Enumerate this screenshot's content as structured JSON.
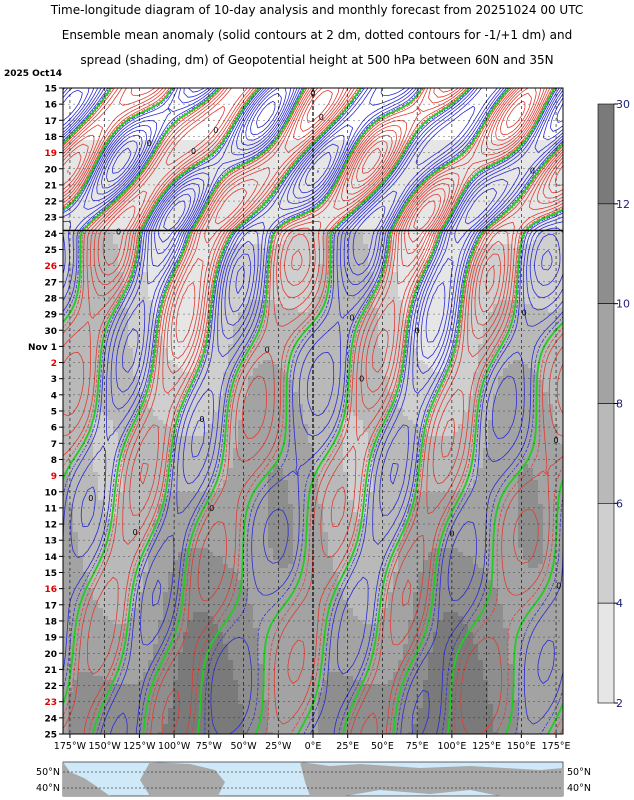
{
  "chart_data": {
    "type": "heatmap",
    "title_lines": [
      "Time-longitude diagram of 10-day analysis and monthly forecast from 20251024 00 UTC",
      "Ensemble mean anomaly (solid contours at 2 dm, dotted contours for -1/+1 dm) and",
      "spread (shading, dm) of Geopotential height at 500 hPa between 60N and 35N"
    ],
    "start_label": "2025 Oct14",
    "y_ticks": [
      {
        "label": "15"
      },
      {
        "label": "16"
      },
      {
        "label": "17"
      },
      {
        "label": "18"
      },
      {
        "label": "19",
        "weekend": true
      },
      {
        "label": "20"
      },
      {
        "label": "21"
      },
      {
        "label": "22"
      },
      {
        "label": "23"
      },
      {
        "label": "24"
      },
      {
        "label": "25"
      },
      {
        "label": "26",
        "weekend": true
      },
      {
        "label": "27"
      },
      {
        "label": "28"
      },
      {
        "label": "29"
      },
      {
        "label": "30"
      },
      {
        "label": "Nov  1"
      },
      {
        "label": "2",
        "weekend": true
      },
      {
        "label": "3"
      },
      {
        "label": "4"
      },
      {
        "label": "5"
      },
      {
        "label": "6"
      },
      {
        "label": "7"
      },
      {
        "label": "8"
      },
      {
        "label": "9",
        "weekend": true
      },
      {
        "label": "10"
      },
      {
        "label": "11"
      },
      {
        "label": "12"
      },
      {
        "label": "13"
      },
      {
        "label": "14"
      },
      {
        "label": "15"
      },
      {
        "label": "16",
        "weekend": true
      },
      {
        "label": "17"
      },
      {
        "label": "18"
      },
      {
        "label": "19"
      },
      {
        "label": "20"
      },
      {
        "label": "21"
      },
      {
        "label": "22"
      },
      {
        "label": "23",
        "weekend": true
      },
      {
        "label": "24"
      },
      {
        "label": "25"
      }
    ],
    "x_ticks": [
      "175°W",
      "150°W",
      "125°W",
      "100°W",
      "75°W",
      "50°W",
      "25°W",
      "0°E",
      "25°E",
      "50°E",
      "75°E",
      "100°E",
      "125°E",
      "150°E",
      "175°E"
    ],
    "x_range_deg": [
      -180,
      180
    ],
    "analysis_end_row": 9,
    "colorbar": {
      "labels": [
        "30",
        "12",
        "10",
        "8",
        "6",
        "4",
        "2"
      ],
      "levels": [
        2,
        4,
        6,
        8,
        10,
        12,
        30
      ],
      "colors": [
        "#e6e6e6",
        "#cfcfcf",
        "#b9b9b9",
        "#a3a3a3",
        "#8e8e8e",
        "#7a7a7a"
      ]
    },
    "contour_colors": {
      "positive": "#e03c31",
      "negative": "#2b2bd6",
      "zero": "#22cc22"
    },
    "zero_labels": [
      {
        "lon": 0,
        "row": 0.3
      },
      {
        "lon": 6,
        "row": 1.8
      },
      {
        "lon": -70,
        "row": 2.6
      },
      {
        "lon": -118,
        "row": 3.4
      },
      {
        "lon": -86,
        "row": 3.9
      },
      {
        "lon": 158,
        "row": 5.1
      },
      {
        "lon": -140,
        "row": 8.9
      },
      {
        "lon": 152,
        "row": 13.9
      },
      {
        "lon": 28,
        "row": 14.2
      },
      {
        "lon": 75,
        "row": 15.0
      },
      {
        "lon": -33,
        "row": 16.2
      },
      {
        "lon": 35,
        "row": 18.0
      },
      {
        "lon": -80,
        "row": 20.5
      },
      {
        "lon": 175,
        "row": 21.8
      },
      {
        "lon": -160,
        "row": 25.4
      },
      {
        "lon": -73,
        "row": 26.0
      },
      {
        "lon": 100,
        "row": 27.6
      },
      {
        "lon": -128,
        "row": 27.5
      },
      {
        "lon": 177,
        "row": 30.8
      }
    ],
    "map_labels": {
      "lat_a": "50°N",
      "lat_b": "40°N"
    }
  }
}
